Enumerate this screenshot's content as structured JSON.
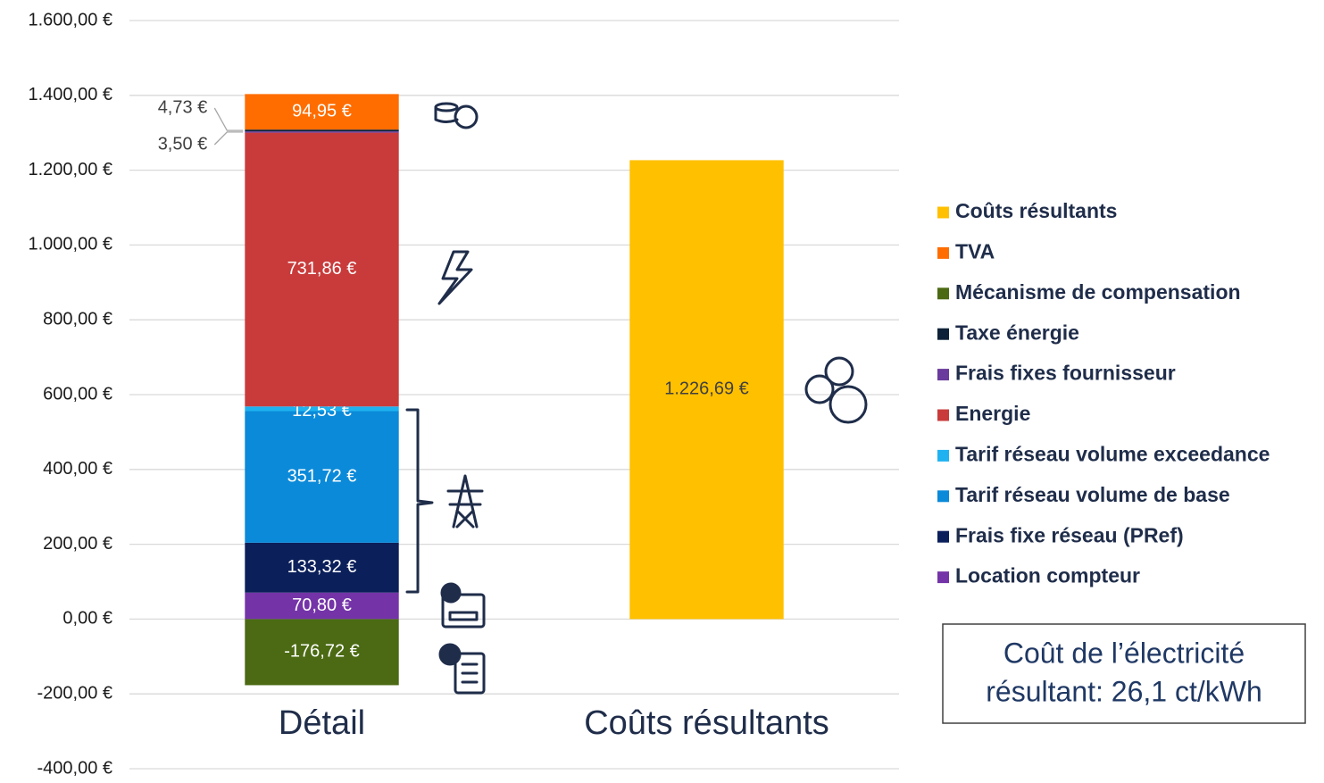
{
  "chart_data": {
    "type": "stacked_bar",
    "categories": [
      "Détail",
      "Coûts résultants"
    ],
    "series": [
      {
        "name": "Coûts résultants",
        "color": "#ffc000",
        "values": [
          null,
          1226.69
        ],
        "value_labels": [
          null,
          "1.226,69 €"
        ]
      },
      {
        "name": "TVA",
        "color": "#ff6d00",
        "values": [
          94.95,
          null
        ],
        "value_labels": [
          "94,95 €",
          null
        ]
      },
      {
        "name": "Mécanisme de compensation",
        "color": "#4b6a13",
        "values": [
          -176.72,
          null
        ],
        "value_labels": [
          "-176,72 €",
          null
        ]
      },
      {
        "name": "Taxe énergie",
        "color": "#0d2238",
        "values": [
          4.73,
          null
        ],
        "value_labels": [
          "4,73 €",
          null
        ]
      },
      {
        "name": "Frais fixes fournisseur",
        "color": "#6a3a9c",
        "values": [
          3.5,
          null
        ],
        "value_labels": [
          "3,50 €",
          null
        ]
      },
      {
        "name": "Energie",
        "color": "#c93b3b",
        "values": [
          731.86,
          null
        ],
        "value_labels": [
          "731,86 €",
          null
        ]
      },
      {
        "name": "Tarif réseau volume exceedance",
        "color": "#1fb2f0",
        "values": [
          12.53,
          null
        ],
        "value_labels": [
          "12,53 €",
          null
        ]
      },
      {
        "name": "Tarif réseau volume de base",
        "color": "#0b8ad9",
        "values": [
          351.72,
          null
        ],
        "value_labels": [
          "351,72 €",
          null
        ]
      },
      {
        "name": "Frais fixe réseau (PRef)",
        "color": "#0b1f5a",
        "values": [
          133.32,
          null
        ],
        "value_labels": [
          "133,32 €",
          null
        ]
      },
      {
        "name": "Location compteur",
        "color": "#7434a8",
        "values": [
          70.8,
          null
        ],
        "value_labels": [
          "70,80 €",
          null
        ]
      }
    ],
    "ylim": [
      -400,
      1600
    ],
    "yticks": [
      {
        "value": -400,
        "label": "-400,00 €"
      },
      {
        "value": -200,
        "label": "-200,00 €"
      },
      {
        "value": 0,
        "label": "0,00 €"
      },
      {
        "value": 200,
        "label": "200,00 €"
      },
      {
        "value": 400,
        "label": "400,00 €"
      },
      {
        "value": 600,
        "label": "600,00 €"
      },
      {
        "value": 800,
        "label": "800,00 €"
      },
      {
        "value": 1000,
        "label": "1.000,00 €"
      },
      {
        "value": 1200,
        "label": "1.200,00 €"
      },
      {
        "value": 1400,
        "label": "1.400,00 €"
      },
      {
        "value": 1600,
        "label": "1.600,00 €"
      }
    ],
    "grid": true,
    "legend": "right",
    "annotation": [
      "Coût de l’électricité",
      "résultant: 26,1 ct/kWh"
    ]
  }
}
